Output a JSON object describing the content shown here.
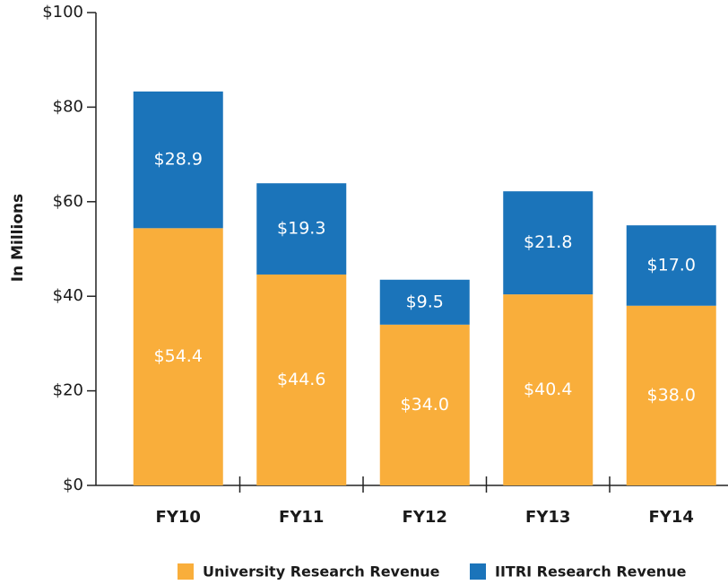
{
  "chart_data": {
    "type": "stacked_bar",
    "y_label": "In Millions",
    "categories": [
      "FY10",
      "FY11",
      "FY12",
      "FY13",
      "FY14"
    ],
    "series": [
      {
        "name": "University Research Revenue",
        "color": "#f9ae3b",
        "values": [
          54.4,
          44.6,
          34.0,
          40.4,
          38.0
        ],
        "value_labels": [
          "$54.4",
          "$44.6",
          "$34.0",
          "$40.4",
          "$38.0"
        ]
      },
      {
        "name": "IITRI Research Revenue",
        "color": "#1b74ba",
        "values": [
          28.9,
          19.3,
          9.5,
          21.8,
          17.0
        ],
        "value_labels": [
          "$28.9",
          "$19.3",
          "$9.5",
          "$21.8",
          "$17.0"
        ]
      }
    ],
    "ylim": [
      0,
      100
    ],
    "yticks": [
      {
        "value": 0,
        "label": "$0"
      },
      {
        "value": 20,
        "label": "$20"
      },
      {
        "value": 40,
        "label": "$40"
      },
      {
        "value": 60,
        "label": "$60"
      },
      {
        "value": 80,
        "label": "$80"
      },
      {
        "value": 100,
        "label": "$100"
      }
    ],
    "legend": "bottom"
  }
}
